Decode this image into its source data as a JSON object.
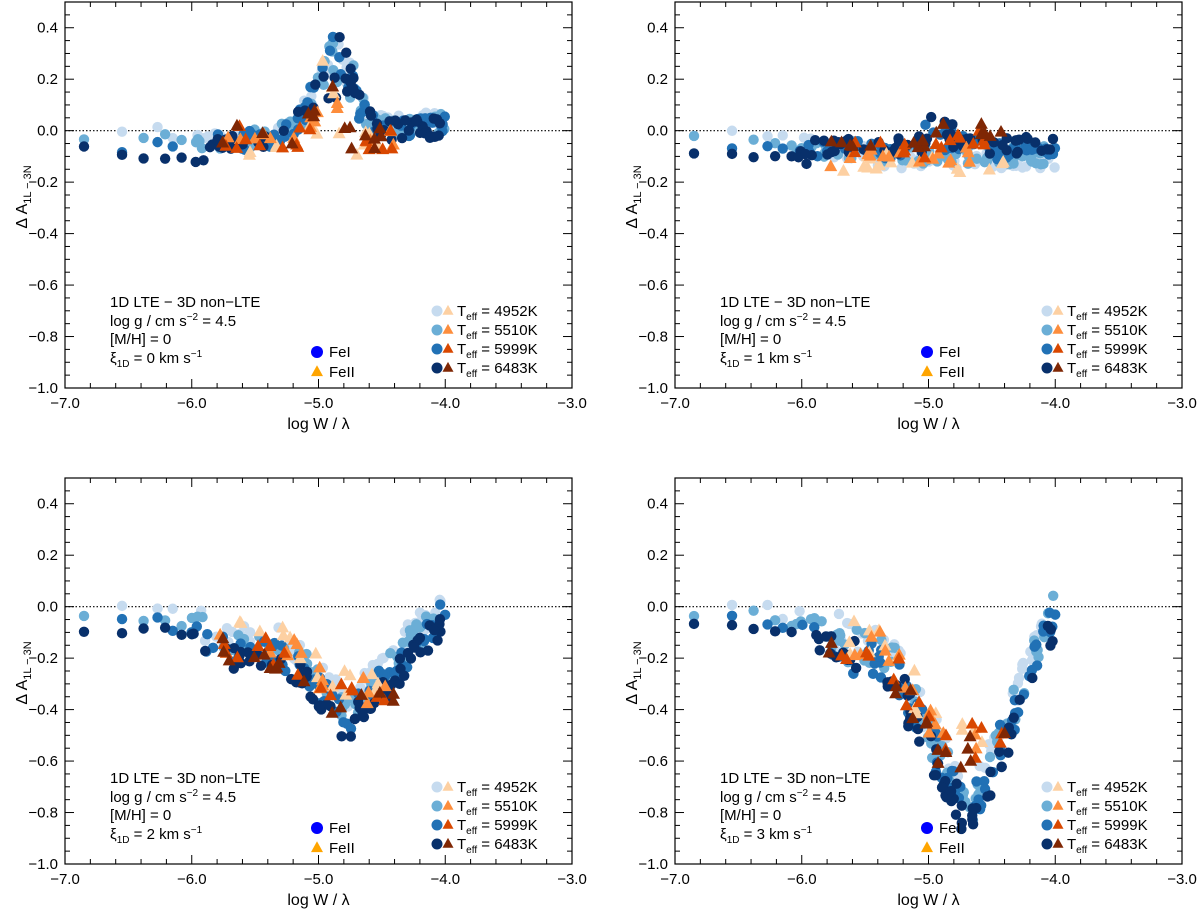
{
  "colors": {
    "feI": [
      "#c6dbef",
      "#6baed6",
      "#2171b5",
      "#08306b"
    ],
    "feII": [
      "#fdd0a2",
      "#fd8d3c",
      "#d94801",
      "#7f2704"
    ],
    "legend_feI": "#0000ff",
    "legend_feII": "#ffa500"
  },
  "chart_data": [
    {
      "type": "scatter",
      "xlabel": "log W / λ",
      "ylabel": {
        "prefix": "Δ A",
        "sub": "1L − 3N"
      },
      "xlim": [
        -7.0,
        -3.0
      ],
      "ylim": [
        -1.0,
        0.5
      ],
      "xticks": [
        "−7.0",
        "−6.0",
        "−5.0",
        "−4.0",
        "−3.0"
      ],
      "yticks": [
        "0.4",
        "0.2",
        "0.0",
        "−0.2",
        "−0.4",
        "−0.6",
        "−0.8",
        "−1.0"
      ],
      "reference_line_y": 0.0,
      "annotation": {
        "line1": "1D LTE − 3D non−LTE",
        "logg": "log g / cm s",
        "logg_exp": "−2",
        "logg_val": " = 4.5",
        "mh": "[M/H] =  0",
        "xi_sym": "ξ",
        "xi_sub": "1D",
        "xi_val": " = 0 km s",
        "xi_exp": "−1"
      },
      "species_legend": [
        "FeI",
        "FeII"
      ],
      "teff_legend": [
        "4952K",
        "5510K",
        "5999K",
        "6483K"
      ],
      "teff_label": "T",
      "teff_sub": "eff",
      "trend": {
        "kind": "peak",
        "xi": 0
      }
    },
    {
      "type": "scatter",
      "xlabel": "log W / λ",
      "ylabel": {
        "prefix": "Δ A",
        "sub": "1L − 3N"
      },
      "xlim": [
        -7.0,
        -3.0
      ],
      "ylim": [
        -1.0,
        0.5
      ],
      "xticks": [
        "−7.0",
        "−6.0",
        "−5.0",
        "−4.0",
        "−3.0"
      ],
      "yticks": [
        "0.4",
        "0.2",
        "0.0",
        "−0.2",
        "−0.4",
        "−0.6",
        "−0.8",
        "−1.0"
      ],
      "reference_line_y": 0.0,
      "annotation": {
        "line1": "1D LTE − 3D non−LTE",
        "logg": "log g / cm s",
        "logg_exp": "−2",
        "logg_val": " = 4.5",
        "mh": "[M/H] =  0",
        "xi_sym": "ξ",
        "xi_sub": "1D",
        "xi_val": " = 1 km s",
        "xi_exp": "−1"
      },
      "species_legend": [
        "FeI",
        "FeII"
      ],
      "teff_legend": [
        "4952K",
        "5510K",
        "5999K",
        "6483K"
      ],
      "teff_label": "T",
      "teff_sub": "eff",
      "trend": {
        "kind": "flat",
        "xi": 1
      }
    },
    {
      "type": "scatter",
      "xlabel": "log W / λ",
      "ylabel": {
        "prefix": "Δ A",
        "sub": "1L − 3N"
      },
      "xlim": [
        -7.0,
        -3.0
      ],
      "ylim": [
        -1.0,
        0.5
      ],
      "xticks": [
        "−7.0",
        "−6.0",
        "−5.0",
        "−4.0",
        "−3.0"
      ],
      "yticks": [
        "0.4",
        "0.2",
        "0.0",
        "−0.2",
        "−0.4",
        "−0.6",
        "−0.8",
        "−1.0"
      ],
      "reference_line_y": 0.0,
      "annotation": {
        "line1": "1D LTE − 3D non−LTE",
        "logg": "log g / cm s",
        "logg_exp": "−2",
        "logg_val": " = 4.5",
        "mh": "[M/H] =  0",
        "xi_sym": "ξ",
        "xi_sub": "1D",
        "xi_val": " = 2 km s",
        "xi_exp": "−1"
      },
      "species_legend": [
        "FeI",
        "FeII"
      ],
      "teff_legend": [
        "4952K",
        "5510K",
        "5999K",
        "6483K"
      ],
      "teff_label": "T",
      "teff_sub": "eff",
      "trend": {
        "kind": "dip",
        "xi": 2
      }
    },
    {
      "type": "scatter",
      "xlabel": "log W / λ",
      "ylabel": {
        "prefix": "Δ A",
        "sub": "1L − 3N"
      },
      "xlim": [
        -7.0,
        -3.0
      ],
      "ylim": [
        -1.0,
        0.5
      ],
      "xticks": [
        "−7.0",
        "−6.0",
        "−5.0",
        "−4.0",
        "−3.0"
      ],
      "yticks": [
        "0.4",
        "0.2",
        "0.0",
        "−0.2",
        "−0.4",
        "−0.6",
        "−0.8",
        "−1.0"
      ],
      "reference_line_y": 0.0,
      "annotation": {
        "line1": "1D LTE − 3D non−LTE",
        "logg": "log g / cm s",
        "logg_exp": "−2",
        "logg_val": " = 4.5",
        "mh": "[M/H] =  0",
        "xi_sym": "ξ",
        "xi_sub": "1D",
        "xi_val": " = 3 km s",
        "xi_exp": "−1"
      },
      "species_legend": [
        "FeI",
        "FeII"
      ],
      "teff_legend": [
        "4952K",
        "5510K",
        "5999K",
        "6483K"
      ],
      "teff_label": "T",
      "teff_sub": "eff",
      "trend": {
        "kind": "deepdip",
        "xi": 3
      }
    }
  ]
}
